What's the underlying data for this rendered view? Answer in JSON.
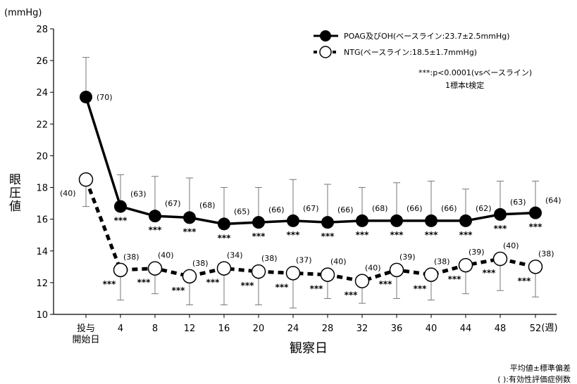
{
  "chart_data": {
    "type": "line",
    "y_unit": "(mmHg)",
    "ylabel": "眼圧値",
    "xlabel": "観察日",
    "x_unit": "(週)",
    "ylim": [
      10,
      28
    ],
    "yticks": [
      10,
      12,
      14,
      16,
      18,
      20,
      22,
      24,
      26,
      28
    ],
    "categories": [
      "投与\n開始日",
      "4",
      "8",
      "12",
      "16",
      "20",
      "24",
      "28",
      "32",
      "36",
      "40",
      "44",
      "48",
      "52"
    ],
    "series": [
      {
        "name": "POAG及びOH(ベースライン:23.7±2.5mmHg)",
        "marker": "filled",
        "color": "#000000",
        "values": [
          23.7,
          16.8,
          16.2,
          16.1,
          15.7,
          15.8,
          15.9,
          15.8,
          15.9,
          15.9,
          15.9,
          15.9,
          16.3,
          16.4
        ],
        "error_upper": [
          26.2,
          18.8,
          18.7,
          18.6,
          18.0,
          18.0,
          18.5,
          18.2,
          18.0,
          18.3,
          18.4,
          17.9,
          18.4,
          18.4
        ],
        "n": [
          "(70)",
          "(63)",
          "(67)",
          "(68)",
          "(65)",
          "(66)",
          "(67)",
          "(66)",
          "(68)",
          "(66)",
          "(66)",
          "(62)",
          "(63)",
          "(64)"
        ],
        "significance": [
          "",
          "***",
          "***",
          "***",
          "***",
          "***",
          "***",
          "***",
          "***",
          "***",
          "***",
          "***",
          "***",
          "***"
        ]
      },
      {
        "name": "NTG(ベースライン:18.5±1.7mmHg)",
        "marker": "open",
        "color": "#000000",
        "values": [
          18.5,
          12.8,
          12.9,
          12.4,
          12.9,
          12.7,
          12.6,
          12.5,
          12.1,
          12.8,
          12.5,
          13.1,
          13.5,
          13.0
        ],
        "error_lower": [
          16.8,
          10.9,
          11.3,
          10.6,
          10.6,
          10.6,
          10.4,
          11.0,
          10.7,
          11.0,
          10.9,
          11.3,
          11.5,
          11.1
        ],
        "n": [
          "(40)",
          "(38)",
          "(40)",
          "(38)",
          "(34)",
          "(38)",
          "(37)",
          "(40)",
          "(40)",
          "(39)",
          "(38)",
          "(39)",
          "(40)",
          "(38)"
        ],
        "significance": [
          "",
          "***",
          "***",
          "***",
          "***",
          "***",
          "***",
          "***",
          "***",
          "***",
          "***",
          "***",
          "***",
          "***"
        ]
      }
    ],
    "annotations": {
      "sig_legend": "***:p<0.0001(vsベースライン)",
      "test_name": "1標本t検定",
      "footnote_1": "平均値±標準偏差",
      "footnote_2": "( ):有効性評価症例数"
    },
    "legend_position": "top-right",
    "grid": false
  }
}
